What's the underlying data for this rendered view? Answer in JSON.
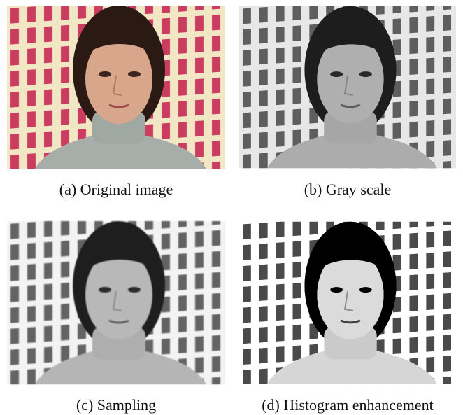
{
  "figure": {
    "panels": [
      {
        "caption": "(a) Original image"
      },
      {
        "caption": "(b) Gray scale"
      },
      {
        "caption": "(c) Sampling"
      },
      {
        "caption": "(d) Histogram enhancement"
      }
    ]
  }
}
